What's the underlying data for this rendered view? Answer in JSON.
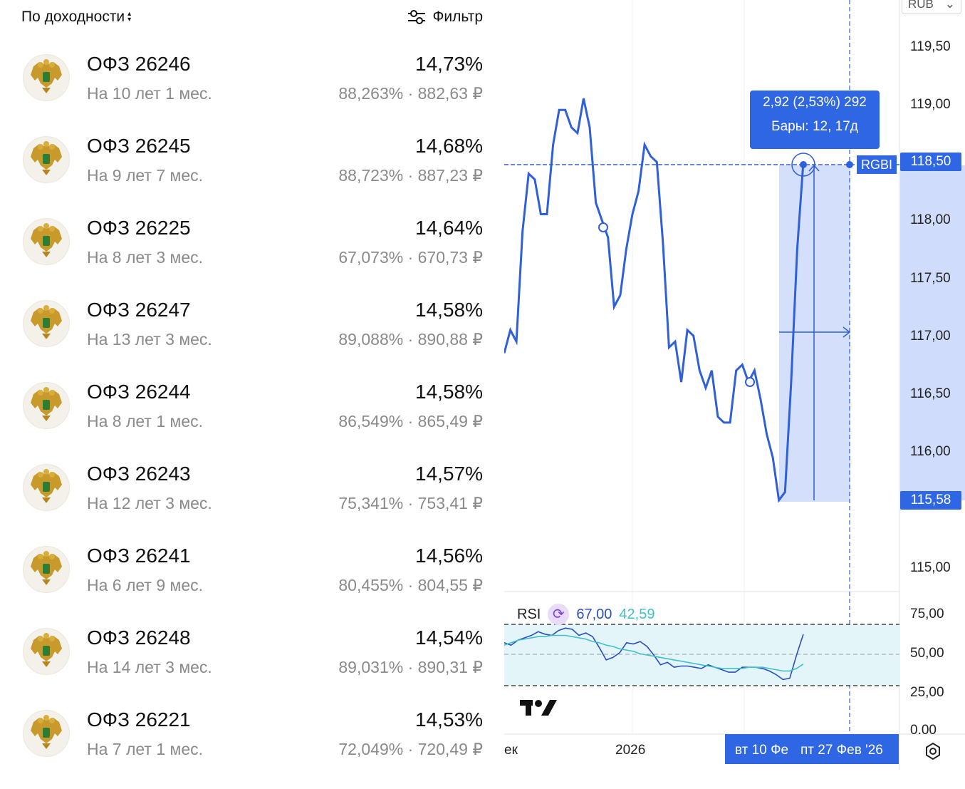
{
  "header": {
    "sort_label": "По доходности",
    "filter_label": "Фильтр"
  },
  "bonds": [
    {
      "name": "ОФЗ 26246",
      "term": "На 10 лет 1 мес.",
      "yield": "14,73%",
      "price": "88,263% · 882,63 ₽"
    },
    {
      "name": "ОФЗ 26245",
      "term": "На 9 лет 7 мес.",
      "yield": "14,68%",
      "price": "88,723% · 887,23 ₽"
    },
    {
      "name": "ОФЗ 26225",
      "term": "На 8 лет 3 мес.",
      "yield": "14,64%",
      "price": "67,073% · 670,73 ₽"
    },
    {
      "name": "ОФЗ 26247",
      "term": "На 13 лет 3 мес.",
      "yield": "14,58%",
      "price": "89,088% · 890,88 ₽"
    },
    {
      "name": "ОФЗ 26244",
      "term": "На 8 лет 1 мес.",
      "yield": "14,58%",
      "price": "86,549% · 865,49 ₽"
    },
    {
      "name": "ОФЗ 26243",
      "term": "На 12 лет 3 мес.",
      "yield": "14,57%",
      "price": "75,341% · 753,41 ₽"
    },
    {
      "name": "ОФЗ 26241",
      "term": "На 6 лет 9 мес.",
      "yield": "14,56%",
      "price": "80,455% · 804,55 ₽"
    },
    {
      "name": "ОФЗ 26248",
      "term": "На 14 лет 3 мес.",
      "yield": "14,54%",
      "price": "89,031% · 890,31 ₽"
    },
    {
      "name": "ОФЗ 26221",
      "term": "На 7 лет 1 мес.",
      "yield": "14,53%",
      "price": "72,049% · 720,49 ₽"
    }
  ],
  "chart": {
    "currency": "RUB",
    "symbol_tag": "RGBI",
    "price_axis_labels": [
      "119,50",
      "119,00",
      "118,00",
      "117,50",
      "117,00",
      "116,50",
      "116,00",
      "115,00"
    ],
    "current_price_tag": "118,50",
    "low_price_tag": "115,58",
    "measure_tooltip": {
      "line1": "2,92 (2,53%) 292",
      "line2": "Бары: 12, 17д"
    },
    "rsi": {
      "label": "RSI",
      "value1": "67,00",
      "value2": "42,59",
      "axis_labels": [
        "75,00",
        "50,00",
        "25,00",
        "0,00"
      ]
    },
    "time_axis": {
      "partial_left": "ек",
      "year": "2026",
      "highlight_start": "вт 10 Фе",
      "highlight_end": "пт 27 Фев '26"
    },
    "colors": {
      "line": "#2f5fd9",
      "accent": "#2f66e4",
      "range_fill": "#cfdcfb",
      "rsi_band": "#e3f5f9",
      "rsi_ma": "#3fc1c9"
    },
    "icons": [
      "sort-icon",
      "filter-icon",
      "emblem-icon",
      "refresh-icon",
      "tradingview-logo",
      "settings-icon"
    ]
  },
  "chart_data": {
    "type": "line",
    "ylim": [
      114.8,
      119.7
    ],
    "series": [
      {
        "values": [
          116.85,
          117.05,
          116.95,
          117.9,
          118.4,
          118.35,
          118.05,
          118.05,
          118.65,
          118.95,
          118.95,
          118.8,
          118.75,
          119.05,
          118.8,
          118.15,
          118.0,
          117.85,
          117.25,
          117.35,
          117.75,
          118.05,
          118.25,
          118.65,
          118.55,
          118.5,
          117.8,
          116.9,
          116.95,
          116.6,
          117.05,
          117.0,
          116.7,
          116.55,
          116.7,
          116.3,
          116.25,
          116.25,
          116.7,
          116.75,
          116.6,
          116.7,
          116.45,
          116.15,
          115.95,
          115.58,
          115.65,
          116.6,
          117.75,
          118.5
        ]
      }
    ],
    "rsi_series": [
      {
        "name": "RSI",
        "values": [
          60,
          58,
          62,
          64,
          66,
          69,
          67,
          66,
          70,
          72,
          71,
          66,
          68,
          65,
          56,
          46,
          48,
          52,
          60,
          59,
          61,
          57,
          50,
          42,
          44,
          40,
          41,
          41,
          40,
          39,
          42,
          40,
          38,
          36,
          36,
          40,
          40,
          40,
          39,
          37,
          34,
          30,
          31,
          50,
          67
        ]
      },
      {
        "name": "MA",
        "values": [
          58,
          60,
          62,
          63,
          64,
          65,
          65,
          66,
          66,
          66,
          65,
          64,
          63,
          61,
          60,
          58,
          57,
          55,
          54,
          53,
          51,
          50,
          49,
          48,
          47,
          46,
          45,
          44,
          43,
          42,
          41,
          40,
          39,
          39,
          39,
          39,
          40,
          40,
          40,
          39,
          38,
          37,
          37,
          39,
          42.59
        ]
      }
    ]
  }
}
